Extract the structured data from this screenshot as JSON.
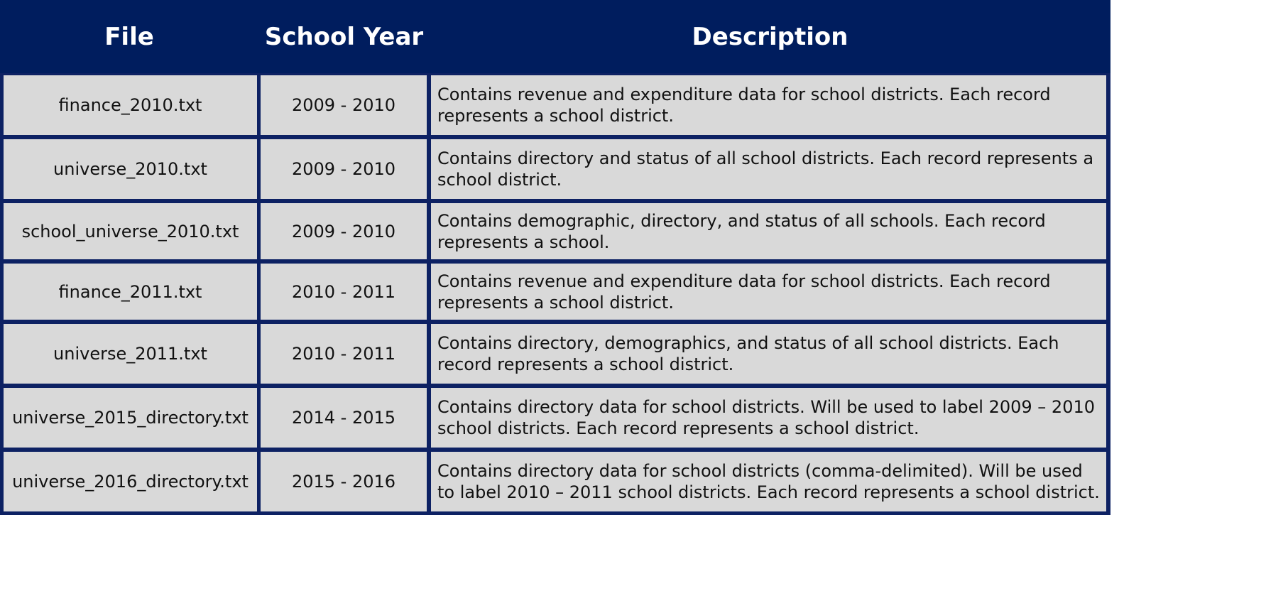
{
  "table": {
    "headers": {
      "file": "File",
      "school_year": "School Year",
      "description": "Description"
    },
    "rows": [
      {
        "file": "finance_2010.txt",
        "school_year": "2009 - 2010",
        "description": "Contains revenue and expenditure data for school districts. Each record represents a school district."
      },
      {
        "file": "universe_2010.txt",
        "school_year": "2009 - 2010",
        "description": "Contains directory and status of all school districts. Each record represents a school district."
      },
      {
        "file": "school_universe_2010.txt",
        "school_year": "2009 - 2010",
        "description": "Contains demographic, directory, and status of all schools. Each record represents a school."
      },
      {
        "file": "finance_2011.txt",
        "school_year": "2010 - 2011",
        "description": "Contains revenue and expenditure data for school districts. Each record represents a school district."
      },
      {
        "file": "universe_2011.txt",
        "school_year": "2010 - 2011",
        "description": "Contains directory, demographics, and status of all school districts. Each record represents a school district."
      },
      {
        "file": "universe_2015_directory.txt",
        "school_year": "2014 - 2015",
        "description": "Contains directory data for school districts. Will be used to label 2009 – 2010 school districts. Each record represents a school district."
      },
      {
        "file": "universe_2016_directory.txt",
        "school_year": "2015 - 2016",
        "description": "Contains directory data for school districts (comma-delimited). Will be used to label 2010 – 2011 school districts. Each record represents a school district."
      }
    ],
    "colors": {
      "header_background": "#001d5e",
      "border": "#0d2163",
      "cell_background": "#d9d9d9",
      "header_text": "#ffffff",
      "cell_text": "#111111"
    }
  }
}
